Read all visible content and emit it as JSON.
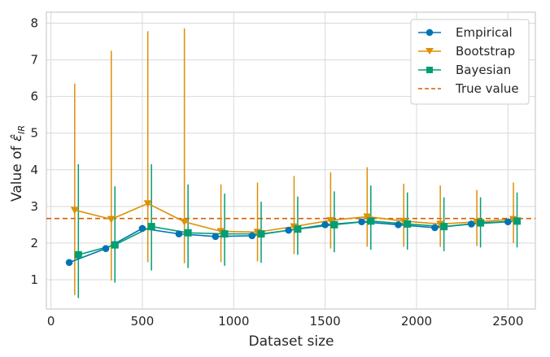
{
  "chart_data": {
    "type": "line",
    "xlabel": "Dataset size",
    "ylabel": "Value of ",
    "ylabel_symbol": "ε̂",
    "ylabel_subscript": "IR",
    "xlim": [
      -25,
      2650
    ],
    "ylim": [
      0.2,
      8.3
    ],
    "xticks": [
      0,
      500,
      1000,
      1500,
      2000,
      2500
    ],
    "yticks": [
      1,
      2,
      3,
      4,
      5,
      6,
      7,
      8
    ],
    "grid": true,
    "legend_position": "top-right",
    "true_value": 2.67,
    "series": [
      {
        "name": "Empirical",
        "color": "#0173b2",
        "marker": "circle",
        "x": [
          100,
          300,
          500,
          700,
          900,
          1100,
          1300,
          1500,
          1700,
          1900,
          2100,
          2300,
          2500
        ],
        "y": [
          1.47,
          1.85,
          2.4,
          2.25,
          2.18,
          2.2,
          2.35,
          2.5,
          2.58,
          2.5,
          2.42,
          2.52,
          2.58
        ],
        "err_low": [],
        "err_high": []
      },
      {
        "name": "Bootstrap",
        "color": "#de8f05",
        "marker": "triangle-down",
        "x": [
          130,
          330,
          530,
          730,
          930,
          1130,
          1330,
          1530,
          1730,
          1930,
          2130,
          2330,
          2530
        ],
        "y": [
          2.9,
          2.65,
          3.08,
          2.58,
          2.32,
          2.3,
          2.45,
          2.62,
          2.72,
          2.6,
          2.52,
          2.58,
          2.65
        ],
        "err_low": [
          0.58,
          0.98,
          1.48,
          1.45,
          1.48,
          1.5,
          1.7,
          1.85,
          1.9,
          1.9,
          1.9,
          1.92,
          2.0
        ],
        "err_high": [
          6.35,
          7.25,
          7.78,
          7.86,
          3.6,
          3.65,
          3.83,
          3.93,
          4.07,
          3.62,
          3.57,
          3.45,
          3.65
        ]
      },
      {
        "name": "Bayesian",
        "color": "#029e73",
        "marker": "square",
        "x": [
          150,
          350,
          550,
          750,
          950,
          1150,
          1350,
          1550,
          1750,
          1950,
          2150,
          2350,
          2550
        ],
        "y": [
          1.68,
          1.95,
          2.45,
          2.28,
          2.25,
          2.25,
          2.38,
          2.5,
          2.6,
          2.52,
          2.45,
          2.55,
          2.6
        ],
        "err_low": [
          0.5,
          0.92,
          1.25,
          1.32,
          1.38,
          1.46,
          1.68,
          1.75,
          1.82,
          1.82,
          1.78,
          1.88,
          1.88
        ],
        "err_high": [
          4.15,
          3.55,
          4.15,
          3.6,
          3.35,
          3.13,
          3.27,
          3.41,
          3.57,
          3.38,
          3.25,
          3.25,
          3.38
        ]
      }
    ],
    "reference_line": {
      "name": "True value",
      "color": "#d55e00",
      "style": "dashed"
    }
  }
}
